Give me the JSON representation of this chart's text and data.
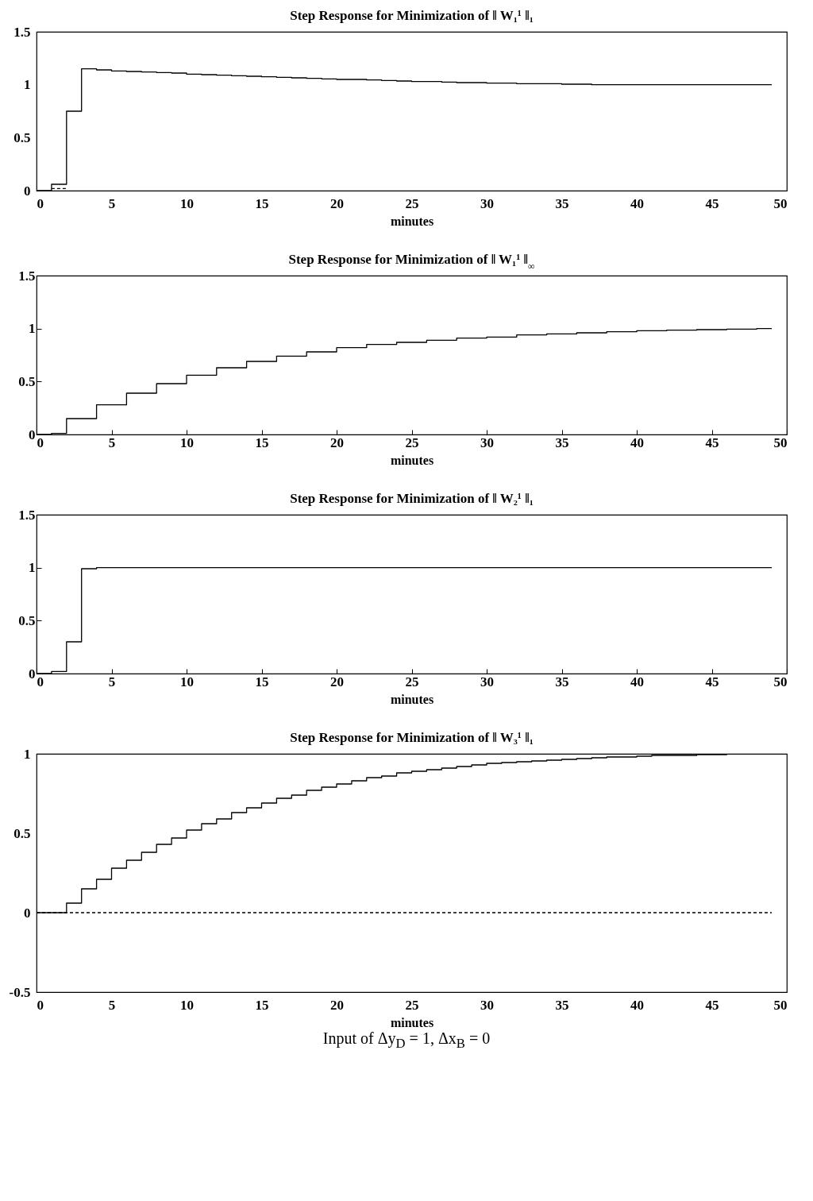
{
  "chart_data": [
    {
      "type": "step",
      "title": "Step Response for Minimization of ‖ W₁¹ ‖₁",
      "xlabel": "minutes",
      "xlim": [
        0,
        50
      ],
      "xticks": [
        0,
        5,
        10,
        15,
        20,
        25,
        30,
        35,
        40,
        45,
        50
      ],
      "ylim": [
        0,
        1.5
      ],
      "yticks": [
        0,
        0.5,
        1,
        1.5
      ],
      "grid": false,
      "series": [
        {
          "color": "#000000",
          "line_style": "solid",
          "x": [
            0,
            1,
            2,
            3,
            4,
            5,
            6,
            7,
            8,
            9,
            10,
            11,
            12,
            13,
            14,
            15,
            16,
            17,
            18,
            19,
            20,
            21,
            22,
            23,
            24,
            25,
            26,
            27,
            28,
            29,
            30,
            31,
            32,
            33,
            34,
            35,
            36,
            37,
            38,
            39,
            40,
            41,
            42,
            43,
            44,
            45,
            46,
            47,
            48,
            49
          ],
          "values": [
            0,
            0.06,
            0.75,
            1.15,
            1.14,
            1.13,
            1.125,
            1.12,
            1.115,
            1.11,
            1.1,
            1.095,
            1.09,
            1.085,
            1.08,
            1.075,
            1.07,
            1.065,
            1.06,
            1.055,
            1.05,
            1.05,
            1.045,
            1.04,
            1.035,
            1.03,
            1.03,
            1.025,
            1.02,
            1.02,
            1.015,
            1.015,
            1.01,
            1.01,
            1.01,
            1.005,
            1.005,
            1,
            1,
            1,
            1,
            1,
            1,
            1,
            1,
            1,
            1,
            1,
            1,
            1
          ]
        },
        {
          "color": "#000000",
          "line_style": "dashed",
          "x": [
            1,
            2
          ],
          "values": [
            0.02,
            0.02
          ]
        }
      ]
    },
    {
      "type": "step",
      "title": "Step Response for Minimization of ‖ W₁¹ ‖$_{∞}$",
      "xlabel": "minutes",
      "xlim": [
        0,
        50
      ],
      "xticks": [
        0,
        5,
        10,
        15,
        20,
        25,
        30,
        35,
        40,
        45,
        50
      ],
      "ylim": [
        0,
        1.5
      ],
      "yticks": [
        0,
        0.5,
        1,
        1.5
      ],
      "grid": false,
      "series": [
        {
          "color": "#000000",
          "line_style": "solid",
          "x": [
            0,
            1,
            2,
            4,
            6,
            8,
            10,
            12,
            14,
            16,
            18,
            20,
            22,
            24,
            26,
            28,
            30,
            32,
            34,
            36,
            38,
            40,
            42,
            44,
            46,
            48,
            49
          ],
          "values": [
            0,
            0.01,
            0.15,
            0.28,
            0.39,
            0.48,
            0.56,
            0.63,
            0.69,
            0.74,
            0.78,
            0.82,
            0.85,
            0.87,
            0.89,
            0.91,
            0.92,
            0.94,
            0.95,
            0.96,
            0.97,
            0.98,
            0.985,
            0.99,
            0.995,
            1,
            1
          ]
        }
      ]
    },
    {
      "type": "step",
      "title": "Step Response for Minimization of ‖ W₂¹ ‖₁",
      "xlabel": "minutes",
      "xlim": [
        0,
        50
      ],
      "xticks": [
        0,
        5,
        10,
        15,
        20,
        25,
        30,
        35,
        40,
        45,
        50
      ],
      "ylim": [
        0,
        1.5
      ],
      "yticks": [
        0,
        0.5,
        1,
        1.5
      ],
      "grid": false,
      "series": [
        {
          "color": "#000000",
          "line_style": "solid",
          "x": [
            0,
            1,
            2,
            3,
            4,
            49
          ],
          "values": [
            0,
            0.02,
            0.3,
            0.99,
            1,
            1
          ]
        }
      ]
    },
    {
      "type": "step",
      "title": "Step Response for Minimization of ‖ W₃¹ ‖₁",
      "xlabel": "minutes",
      "xlim": [
        0,
        50
      ],
      "xticks": [
        0,
        5,
        10,
        15,
        20,
        25,
        30,
        35,
        40,
        45,
        50
      ],
      "ylim": [
        -0.5,
        1
      ],
      "yticks": [
        -0.5,
        0,
        0.5,
        1
      ],
      "grid": false,
      "annotations": [
        "Input of Δy$_{D}$ = 1, Δx$_{B}$ = 0"
      ],
      "series": [
        {
          "color": "#000000",
          "line_style": "solid",
          "x": [
            0,
            2,
            3,
            4,
            5,
            6,
            7,
            8,
            9,
            10,
            11,
            12,
            13,
            14,
            15,
            16,
            17,
            18,
            19,
            20,
            21,
            22,
            23,
            24,
            25,
            26,
            27,
            28,
            29,
            30,
            31,
            32,
            33,
            34,
            35,
            36,
            37,
            38,
            39,
            40,
            41,
            42,
            43,
            44,
            45,
            46,
            47,
            48,
            49
          ],
          "values": [
            0,
            0.06,
            0.15,
            0.21,
            0.28,
            0.33,
            0.38,
            0.43,
            0.47,
            0.52,
            0.56,
            0.59,
            0.63,
            0.66,
            0.69,
            0.72,
            0.74,
            0.77,
            0.79,
            0.81,
            0.83,
            0.85,
            0.86,
            0.88,
            0.89,
            0.9,
            0.91,
            0.92,
            0.93,
            0.94,
            0.945,
            0.95,
            0.955,
            0.96,
            0.965,
            0.97,
            0.975,
            0.98,
            0.98,
            0.985,
            0.99,
            0.99,
            0.99,
            0.995,
            0.995,
            1,
            1,
            1,
            1
          ]
        },
        {
          "color": "#000000",
          "line_style": "dashed",
          "x": [
            0,
            49
          ],
          "values": [
            0,
            0
          ]
        }
      ]
    }
  ]
}
